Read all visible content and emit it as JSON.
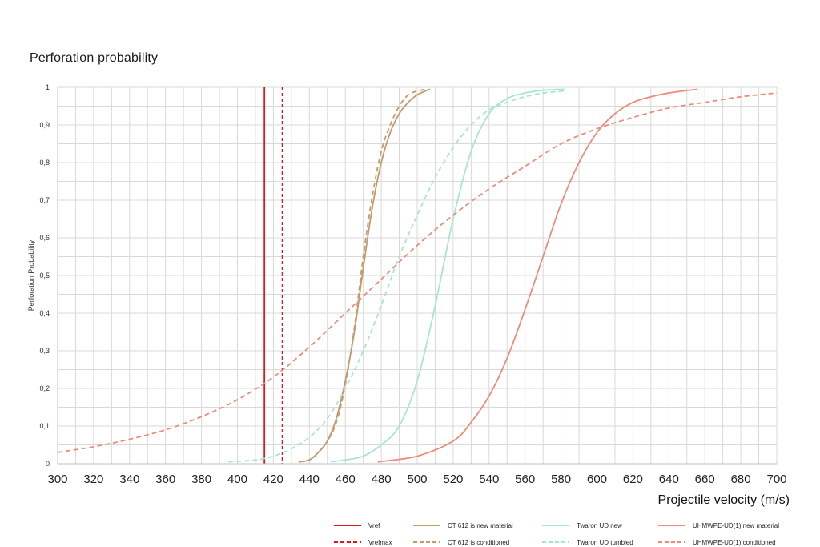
{
  "chart_title": "Perforation probability",
  "chart_data": {
    "type": "line",
    "title": "Perforation probability",
    "xlabel": "Projectile velocity (m/s)",
    "ylabel": "Perforation Probability",
    "xlim": [
      300,
      700
    ],
    "ylim": [
      0,
      1
    ],
    "x_ticks": [
      "300",
      "320",
      "340",
      "360",
      "380",
      "400",
      "420",
      "440",
      "460",
      "480",
      "500",
      "520",
      "540",
      "560",
      "580",
      "600",
      "620",
      "640",
      "660",
      "680",
      "700"
    ],
    "y_ticks": [
      "0",
      "0,1",
      "0,2",
      "0,3",
      "0,4",
      "0,5",
      "0,6",
      "0,7",
      "0,8",
      "0,9",
      "1"
    ],
    "grid": true,
    "legend_position": "bottom-right",
    "vertical_lines": [
      {
        "name": "Vref",
        "x": 415,
        "color": "#d71920",
        "dash": false
      },
      {
        "name": "Vrefmax",
        "x": 425,
        "color": "#d71920",
        "dash": true
      }
    ],
    "series": [
      {
        "name": "CT 612 is new material",
        "color": "#c49a6c",
        "dash": false,
        "x": [
          434,
          440,
          445,
          450,
          455,
          460,
          465,
          470,
          475,
          480,
          485,
          490,
          495,
          500,
          507
        ],
        "y": [
          0.005,
          0.01,
          0.03,
          0.06,
          0.12,
          0.22,
          0.35,
          0.52,
          0.68,
          0.8,
          0.88,
          0.93,
          0.96,
          0.98,
          0.995
        ]
      },
      {
        "name": "CT 612 is conditioned",
        "color": "#c49a6c",
        "dash": true,
        "x": [
          434,
          440,
          445,
          450,
          455,
          460,
          465,
          470,
          475,
          480,
          485,
          490,
          495,
          500,
          505
        ],
        "y": [
          0.005,
          0.01,
          0.03,
          0.06,
          0.11,
          0.21,
          0.36,
          0.55,
          0.71,
          0.83,
          0.9,
          0.95,
          0.98,
          0.99,
          0.995
        ]
      },
      {
        "name": "Twaron UD new",
        "color": "#a8e6d0",
        "dash": false,
        "x": [
          452,
          460,
          470,
          480,
          490,
          500,
          510,
          520,
          530,
          540,
          550,
          560,
          570,
          582
        ],
        "y": [
          0.005,
          0.01,
          0.02,
          0.05,
          0.1,
          0.22,
          0.42,
          0.65,
          0.83,
          0.93,
          0.97,
          0.985,
          0.992,
          0.995
        ]
      },
      {
        "name": "Twaron UD tumbled",
        "color": "#a8e6d0",
        "dash": true,
        "x": [
          395,
          410,
          420,
          430,
          440,
          450,
          460,
          470,
          480,
          490,
          500,
          510,
          520,
          530,
          540,
          550,
          560,
          570,
          582
        ],
        "y": [
          0.005,
          0.01,
          0.02,
          0.04,
          0.07,
          0.12,
          0.2,
          0.3,
          0.42,
          0.55,
          0.66,
          0.76,
          0.84,
          0.9,
          0.94,
          0.96,
          0.975,
          0.985,
          0.99
        ]
      },
      {
        "name": "UHMWPE-UD(1) new material",
        "color": "#f08a7a",
        "dash": false,
        "x": [
          478,
          500,
          520,
          530,
          540,
          550,
          560,
          570,
          580,
          590,
          600,
          610,
          620,
          630,
          640,
          656
        ],
        "y": [
          0.005,
          0.02,
          0.06,
          0.11,
          0.18,
          0.28,
          0.41,
          0.55,
          0.69,
          0.8,
          0.88,
          0.93,
          0.96,
          0.975,
          0.985,
          0.995
        ]
      },
      {
        "name": "UHMWPE-UD(1) conditioned",
        "color": "#f08a7a",
        "dash": true,
        "x": [
          300,
          320,
          340,
          360,
          380,
          400,
          420,
          440,
          460,
          480,
          500,
          520,
          540,
          560,
          580,
          600,
          620,
          640,
          660,
          680,
          700
        ],
        "y": [
          0.03,
          0.045,
          0.065,
          0.09,
          0.125,
          0.17,
          0.23,
          0.31,
          0.4,
          0.49,
          0.58,
          0.66,
          0.73,
          0.79,
          0.85,
          0.89,
          0.92,
          0.945,
          0.96,
          0.975,
          0.985
        ]
      }
    ]
  }
}
